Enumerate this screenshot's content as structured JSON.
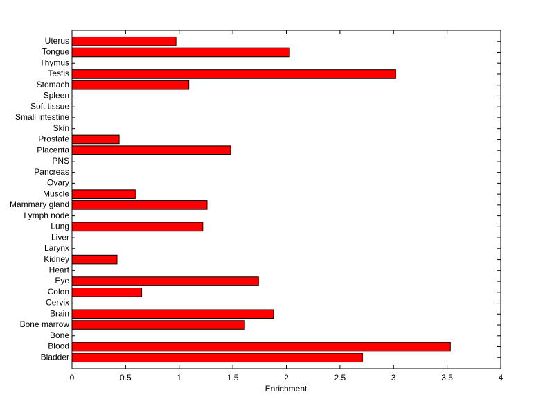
{
  "chart_data": {
    "type": "barh",
    "xlabel": "Enrichment",
    "categories": [
      "Bladder",
      "Blood",
      "Bone",
      "Bone marrow",
      "Brain",
      "Cervix",
      "Colon",
      "Eye",
      "Heart",
      "Kidney",
      "Larynx",
      "Liver",
      "Lung",
      "Lymph node",
      "Mammary gland",
      "Muscle",
      "Ovary",
      "Pancreas",
      "PNS",
      "Placenta",
      "Prostate",
      "Skin",
      "Small intestine",
      "Soft tissue",
      "Spleen",
      "Stomach",
      "Testis",
      "Thymus",
      "Tongue",
      "Uterus"
    ],
    "values": [
      2.71,
      3.53,
      0,
      1.61,
      1.88,
      0,
      0.65,
      1.74,
      0,
      0.42,
      0,
      0,
      1.22,
      0,
      1.26,
      0.59,
      0,
      0,
      0,
      1.48,
      0.44,
      0,
      0,
      0,
      0,
      1.09,
      3.02,
      0,
      2.03,
      0.97
    ],
    "color": "#ff0000",
    "xlim": [
      0,
      4
    ],
    "xticks": [
      0,
      0.5,
      1,
      1.5,
      2,
      2.5,
      3,
      3.5,
      4
    ]
  }
}
